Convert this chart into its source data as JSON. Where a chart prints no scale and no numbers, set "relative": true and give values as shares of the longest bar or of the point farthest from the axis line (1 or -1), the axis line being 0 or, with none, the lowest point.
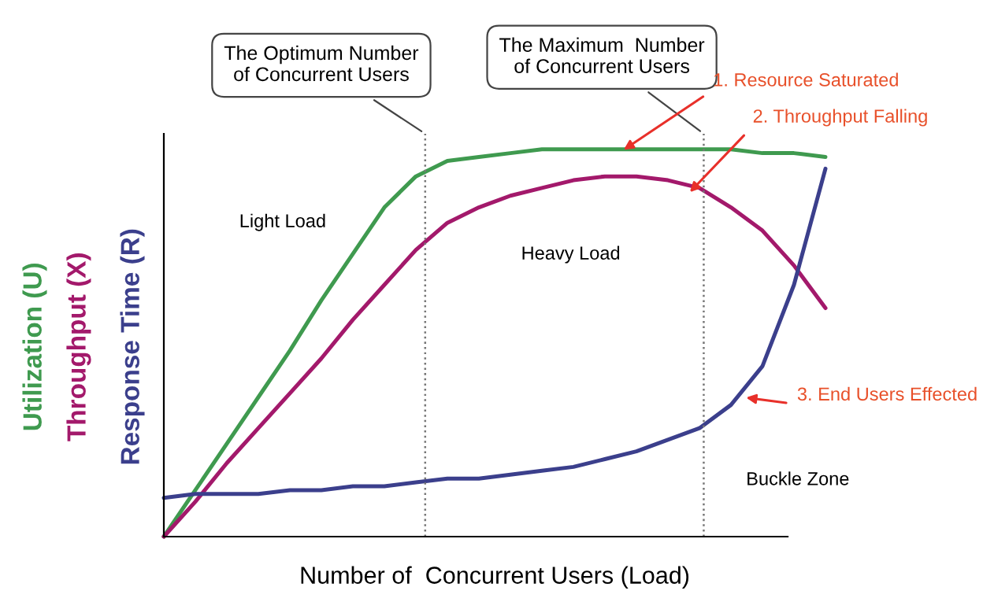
{
  "chart_data": {
    "type": "line",
    "relative": true,
    "xlabel": "Number of  Concurrent Users (Load)",
    "categories": [
      null,
      null,
      null,
      null,
      null,
      null,
      null,
      null,
      null,
      null,
      null,
      null,
      null,
      null,
      null,
      null,
      null,
      null,
      null,
      null,
      null,
      null
    ],
    "series": [
      {
        "name": "Utilization (U)",
        "color": "#3f9a4f",
        "values": [
          0,
          0.12,
          0.24,
          0.36,
          0.48,
          0.61,
          0.73,
          0.85,
          0.93,
          0.97,
          0.98,
          0.99,
          1.0,
          1.0,
          1.0,
          1.0,
          1.0,
          1.0,
          1.0,
          0.99,
          0.99,
          0.98
        ]
      },
      {
        "name": "Throughput (X)",
        "color": "#a3196b",
        "values": [
          0,
          0.09,
          0.19,
          0.28,
          0.37,
          0.46,
          0.56,
          0.65,
          0.74,
          0.81,
          0.85,
          0.88,
          0.9,
          0.92,
          0.93,
          0.93,
          0.92,
          0.9,
          0.85,
          0.79,
          0.7,
          0.59
        ]
      },
      {
        "name": "Response Time (R)",
        "color": "#3b3f8c",
        "values": [
          0.1,
          0.11,
          0.11,
          0.11,
          0.12,
          0.12,
          0.13,
          0.13,
          0.14,
          0.15,
          0.15,
          0.16,
          0.17,
          0.18,
          0.2,
          0.22,
          0.25,
          0.28,
          0.34,
          0.44,
          0.65,
          0.95
        ]
      }
    ],
    "annotations": [
      "The Optimum Number\nof Concurrent Users",
      "The Maximum  Number\nof Concurrent Users",
      "Light Load",
      "Heavy Load",
      "Buckle Zone",
      "1. Resource Saturated",
      "2. Throughput Falling",
      "3. End Users Effected"
    ],
    "grid": false
  }
}
